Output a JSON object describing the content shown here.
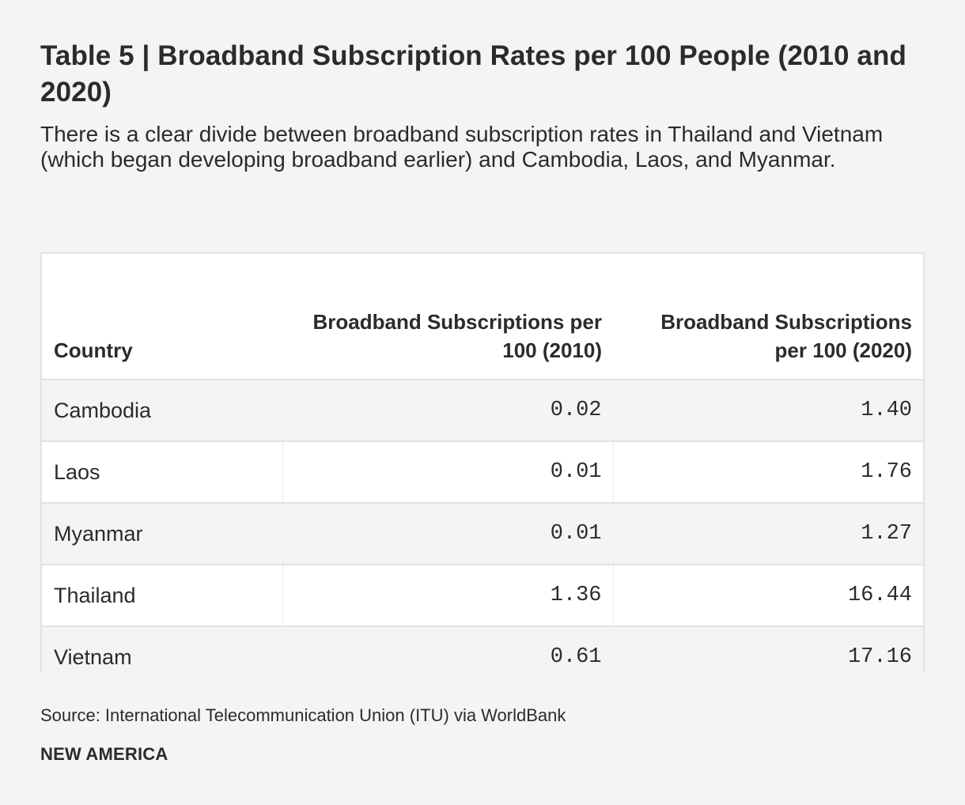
{
  "title": "Table 5 | Broadband Subscription Rates per 100 People (2010 and 2020)",
  "subtitle": "There is a clear divide between broadband subscription rates in Thailand and Vietnam (which began developing broadband earlier) and Cambodia, Laos, and Myanmar.",
  "chart_data": {
    "type": "table",
    "title": "Table 5 | Broadband Subscription Rates per 100 People (2010 and 2020)",
    "columns": [
      "Country",
      "Broadband Subscriptions per 100 (2010)",
      "Broadband Subscriptions per 100 (2020)"
    ],
    "rows": [
      {
        "country": "Cambodia",
        "v2010": "0.02",
        "v2020": "1.40"
      },
      {
        "country": "Laos",
        "v2010": "0.01",
        "v2020": "1.76"
      },
      {
        "country": "Myanmar",
        "v2010": "0.01",
        "v2020": "1.27"
      },
      {
        "country": "Thailand",
        "v2010": "1.36",
        "v2020": "16.44"
      },
      {
        "country": "Vietnam",
        "v2010": "0.61",
        "v2020": "17.16"
      }
    ]
  },
  "source": "Source: International Telecommunication Union (ITU) via WorldBank",
  "brand": "NEW AMERICA",
  "colors": {
    "background": "#f4f4f4",
    "row_alt": "#ffffff",
    "border": "#e2e2e2",
    "text": "#2b2b2b"
  }
}
